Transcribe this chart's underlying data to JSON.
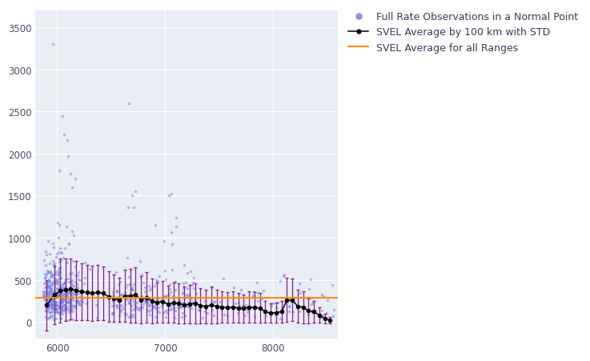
{
  "xlim": [
    5800,
    8600
  ],
  "ylim": [
    -200,
    3700
  ],
  "yticks": [
    0,
    500,
    1000,
    1500,
    2000,
    2500,
    3000,
    3500
  ],
  "xticks": [
    6000,
    7000,
    8000
  ],
  "plot_bg_color": "#E8EDF6",
  "scatter_color": "#7B7FE0",
  "scatter_alpha": 0.55,
  "scatter_size": 6,
  "line_color": "#000000",
  "line_marker": "o",
  "line_markersize": 3,
  "errorbar_color": "#8B1A8B",
  "hline_color": "#FF8C00",
  "hline_value": 290,
  "hline_lw": 1.5,
  "legend_labels": [
    "Full Rate Observations in a Normal Point",
    "SVEL Average by 100 km with STD",
    "SVEL Average for all Ranges"
  ],
  "legend_fontsize": 9,
  "grid_color": "#FFFFFF",
  "seed": 42,
  "bin_centers": [
    5900,
    5975,
    6025,
    6075,
    6125,
    6175,
    6225,
    6275,
    6325,
    6375,
    6425,
    6475,
    6525,
    6575,
    6625,
    6675,
    6725,
    6775,
    6825,
    6875,
    6925,
    6975,
    7025,
    7075,
    7125,
    7175,
    7225,
    7275,
    7325,
    7375,
    7425,
    7475,
    7525,
    7575,
    7625,
    7675,
    7725,
    7775,
    7825,
    7875,
    7925,
    7975,
    8025,
    8075,
    8125,
    8175,
    8225,
    8275,
    8325,
    8375,
    8425,
    8475,
    8525
  ],
  "bin_means": [
    200,
    320,
    370,
    380,
    390,
    370,
    360,
    350,
    340,
    350,
    340,
    300,
    280,
    260,
    310,
    310,
    320,
    260,
    290,
    250,
    230,
    240,
    210,
    230,
    220,
    200,
    210,
    220,
    195,
    185,
    200,
    185,
    175,
    170,
    175,
    165,
    160,
    175,
    170,
    165,
    120,
    105,
    110,
    120,
    260,
    260,
    185,
    175,
    130,
    120,
    80,
    40,
    20
  ],
  "bin_stds": [
    300,
    350,
    380,
    370,
    360,
    350,
    340,
    330,
    325,
    330,
    320,
    300,
    280,
    260,
    310,
    320,
    330,
    280,
    300,
    265,
    240,
    250,
    220,
    240,
    235,
    215,
    225,
    235,
    210,
    200,
    215,
    200,
    185,
    180,
    185,
    175,
    165,
    185,
    180,
    175,
    130,
    115,
    120,
    130,
    260,
    250,
    195,
    190,
    145,
    130,
    90,
    60,
    40
  ]
}
